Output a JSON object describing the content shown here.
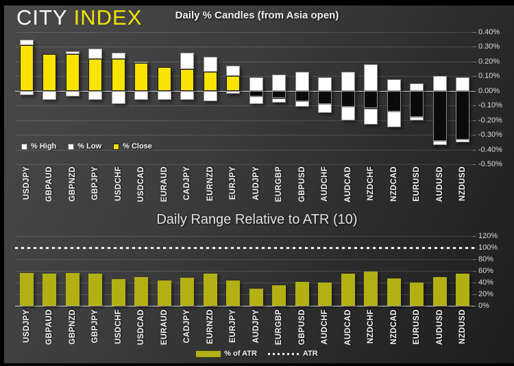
{
  "logo": {
    "city": "CITY",
    "index": "INDEX"
  },
  "colors": {
    "background": "#3a3a3a",
    "candle_up": "#f9e300",
    "candle_down": "#0a0a0a",
    "candle_high_low": "#ffffff",
    "atr_bar": "#b3b014",
    "atr_line": "#f0f0f0",
    "logo_city": "#ffffff",
    "logo_index": "#f5e400"
  },
  "chart_data": [
    {
      "type": "bar",
      "subtype": "daily-percent-candles",
      "title": "Daily % Candles (from Asia open)",
      "categories": [
        "USDJPY",
        "GBPAUD",
        "GBPNZD",
        "GBPJPY",
        "USDCHF",
        "USDCAD",
        "EURAUD",
        "CADJPY",
        "EURNZD",
        "EURJPY",
        "AUDJPY",
        "EURGBP",
        "GBPUSD",
        "AUDCHF",
        "AUDCAD",
        "NZDCHF",
        "NZDCAD",
        "EURUSD",
        "AUDUSD",
        "NZDUSD"
      ],
      "series": [
        {
          "name": "% High",
          "color": "#ffffff",
          "values": [
            0.35,
            0.25,
            0.27,
            0.29,
            0.26,
            0.2,
            0.16,
            0.26,
            0.23,
            0.17,
            0.09,
            0.11,
            0.13,
            0.09,
            0.13,
            0.18,
            0.08,
            0.05,
            0.1,
            0.09
          ]
        },
        {
          "name": "% Low",
          "color": "#ffffff",
          "values": [
            -0.03,
            -0.06,
            -0.04,
            -0.06,
            -0.09,
            -0.06,
            -0.06,
            -0.06,
            -0.07,
            -0.02,
            -0.09,
            -0.08,
            -0.11,
            -0.15,
            -0.2,
            -0.23,
            -0.25,
            -0.2,
            -0.37,
            -0.35
          ]
        },
        {
          "name": "% Close",
          "color": "#f9e300",
          "values": [
            0.31,
            0.25,
            0.25,
            0.22,
            0.22,
            0.19,
            0.16,
            0.15,
            0.13,
            0.1,
            -0.04,
            -0.05,
            -0.07,
            -0.09,
            -0.11,
            -0.12,
            -0.14,
            -0.18,
            -0.34,
            -0.33
          ]
        }
      ],
      "ylim": [
        -0.5,
        0.4
      ],
      "ytick_labels": [
        "0.40%",
        "0.30%",
        "0.20%",
        "0.10%",
        "0.00%",
        "-0.10%",
        "-0.20%",
        "-0.30%",
        "-0.40%",
        "-0.50%"
      ],
      "zero_tick_label": "0.00%",
      "grid": true,
      "legend_position": "bottom-left"
    },
    {
      "type": "bar",
      "title": "Daily Range Relative to ATR (10)",
      "categories": [
        "USDJPY",
        "GBPAUD",
        "GBPNZD",
        "GBPJPY",
        "USDCHF",
        "USDCAD",
        "EURAUD",
        "CADJPY",
        "EURNZD",
        "EURJPY",
        "AUDJPY",
        "EURGBP",
        "GBPUSD",
        "AUDCHF",
        "AUDCAD",
        "NZDCHF",
        "NZDCAD",
        "EURUSD",
        "AUDUSD",
        "NZDUSD"
      ],
      "series": [
        {
          "name": "% of ATR",
          "color": "#b3b014",
          "values": [
            56,
            55,
            56,
            55,
            46,
            49,
            44,
            48,
            55,
            43,
            30,
            35,
            41,
            40,
            55,
            59,
            47,
            40,
            49,
            55
          ]
        }
      ],
      "reference_line": {
        "name": "ATR",
        "value": 100,
        "style": "dotted",
        "color": "#f0f0f0"
      },
      "ylim": [
        0,
        120
      ],
      "ytick_labels": [
        "120%",
        "100%",
        "80%",
        "60%",
        "40%",
        "20%",
        "0%"
      ],
      "zero_tick_label": "0%",
      "grid": true,
      "legend_position": "bottom-center"
    }
  ]
}
